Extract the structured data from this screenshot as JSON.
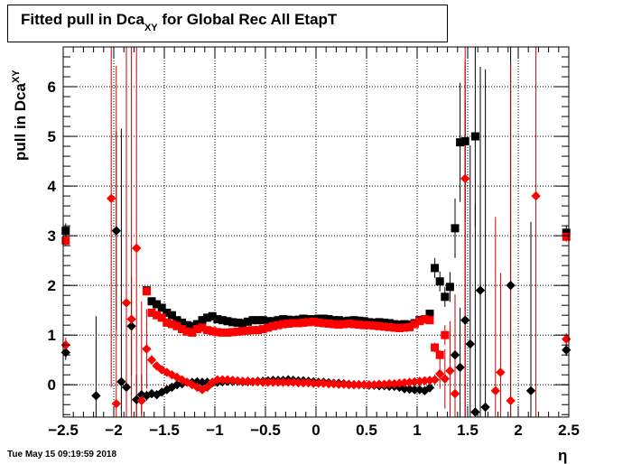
{
  "title": {
    "main": "Fitted pull in Dca",
    "sub": "XY",
    "rest": " for Global Rec All EtapT"
  },
  "timestamp": "Tue May 15 09:19:59 2018",
  "colors": {
    "black_series": "#000000",
    "red_series": "#ff0000",
    "red_errorbar": "#cc0000"
  },
  "chart_data": {
    "type": "scatter",
    "title": "Fitted pull in Dca_XY for Global Rec All EtapT",
    "xlabel": "η",
    "ylabel": "pull in Dca_XY",
    "xlim": [
      -2.5,
      2.5
    ],
    "ylim": [
      -0.65,
      6.8
    ],
    "xticks": [
      -2.5,
      -2,
      -1.5,
      -1,
      -0.5,
      0,
      0.5,
      1,
      1.5,
      2,
      2.5
    ],
    "xtick_labels": [
      "−2.5",
      "−2",
      "−1.5",
      "−1",
      "−0.5",
      "0",
      "0.5",
      "1",
      "1.5",
      "2",
      "2.5"
    ],
    "yticks": [
      0,
      1,
      2,
      3,
      4,
      5,
      6
    ],
    "ytick_labels": [
      "0",
      "1",
      "2",
      "3",
      "4",
      "5",
      "6"
    ],
    "grid": true,
    "series": [
      {
        "marker": "square",
        "color": "black",
        "x": [
          -2.475,
          -1.675,
          -1.625,
          -1.575,
          -1.525,
          -1.475,
          -1.425,
          -1.375,
          -1.325,
          -1.275,
          -1.225,
          -1.175,
          -1.125,
          -1.075,
          -1.025,
          -0.975,
          -0.925,
          -0.875,
          -0.825,
          -0.775,
          -0.725,
          -0.675,
          -0.625,
          -0.575,
          -0.525,
          -0.475,
          -0.425,
          -0.375,
          -0.325,
          -0.275,
          -0.225,
          -0.175,
          -0.125,
          -0.075,
          -0.025,
          0.025,
          0.075,
          0.125,
          0.175,
          0.225,
          0.275,
          0.325,
          0.375,
          0.425,
          0.475,
          0.525,
          0.575,
          0.625,
          0.675,
          0.725,
          0.775,
          0.825,
          0.875,
          0.925,
          0.975,
          1.025,
          1.075,
          1.125,
          1.175,
          1.225,
          1.275,
          1.325,
          1.375,
          1.425,
          1.475,
          1.575,
          2.475
        ],
        "y": [
          3.1,
          1.9,
          1.68,
          1.62,
          1.55,
          1.45,
          1.4,
          1.3,
          1.25,
          1.2,
          1.18,
          1.22,
          1.3,
          1.35,
          1.38,
          1.32,
          1.3,
          1.28,
          1.26,
          1.25,
          1.24,
          1.27,
          1.3,
          1.3,
          1.3,
          1.28,
          1.28,
          1.3,
          1.32,
          1.31,
          1.3,
          1.31,
          1.33,
          1.32,
          1.32,
          1.33,
          1.33,
          1.32,
          1.3,
          1.3,
          1.28,
          1.29,
          1.3,
          1.29,
          1.28,
          1.26,
          1.25,
          1.26,
          1.25,
          1.24,
          1.22,
          1.21,
          1.22,
          1.21,
          1.24,
          1.3,
          1.32,
          1.43,
          2.35,
          2.08,
          1.77,
          1.97,
          3.15,
          4.88,
          4.9,
          5.0,
          3.06
        ],
        "yerr": [
          0.15,
          0.05,
          0.05,
          0.05,
          0.05,
          0.05,
          0.05,
          0.05,
          0.05,
          0.05,
          0.05,
          0.05,
          0.05,
          0.05,
          0.05,
          0.05,
          0.05,
          0.05,
          0.05,
          0.05,
          0.05,
          0.05,
          0.05,
          0.05,
          0.05,
          0.05,
          0.05,
          0.05,
          0.05,
          0.05,
          0.05,
          0.05,
          0.05,
          0.05,
          0.05,
          0.05,
          0.05,
          0.05,
          0.05,
          0.05,
          0.05,
          0.05,
          0.05,
          0.05,
          0.05,
          0.05,
          0.05,
          0.05,
          0.05,
          0.05,
          0.05,
          0.05,
          0.05,
          0.05,
          0.05,
          0.05,
          0.05,
          0.05,
          0.2,
          0.2,
          0.2,
          0.3,
          0.6,
          1.2,
          1.6,
          1.8,
          0.15
        ]
      },
      {
        "marker": "square",
        "color": "red",
        "x": [
          -2.475,
          -1.675,
          -1.625,
          -1.575,
          -1.525,
          -1.475,
          -1.425,
          -1.375,
          -1.325,
          -1.275,
          -1.225,
          -1.175,
          -1.125,
          -1.075,
          -1.025,
          -0.975,
          -0.925,
          -0.875,
          -0.825,
          -0.775,
          -0.725,
          -0.675,
          -0.625,
          -0.575,
          -0.525,
          -0.475,
          -0.425,
          -0.375,
          -0.325,
          -0.275,
          -0.225,
          -0.175,
          -0.125,
          -0.075,
          -0.025,
          0.025,
          0.075,
          0.125,
          0.175,
          0.225,
          0.275,
          0.325,
          0.375,
          0.425,
          0.475,
          0.525,
          0.575,
          0.625,
          0.675,
          0.725,
          0.775,
          0.825,
          0.875,
          0.925,
          0.975,
          1.025,
          1.075,
          1.125,
          1.175,
          1.225,
          1.275,
          2.475
        ],
        "y": [
          2.9,
          1.88,
          1.45,
          1.4,
          1.35,
          1.25,
          1.22,
          1.18,
          1.12,
          1.07,
          1.05,
          1.12,
          1.15,
          1.1,
          1.08,
          1.06,
          1.05,
          1.05,
          1.06,
          1.07,
          1.08,
          1.09,
          1.1,
          1.1,
          1.12,
          1.15,
          1.18,
          1.2,
          1.22,
          1.23,
          1.24,
          1.24,
          1.25,
          1.26,
          1.27,
          1.25,
          1.24,
          1.23,
          1.22,
          1.21,
          1.22,
          1.23,
          1.22,
          1.21,
          1.2,
          1.2,
          1.19,
          1.18,
          1.17,
          1.16,
          1.15,
          1.14,
          1.15,
          1.16,
          1.22,
          1.28,
          1.32,
          1.3,
          0.75,
          0.6,
          1.0,
          2.98
        ],
        "yerr": [
          0.1,
          0.05,
          0.05,
          0.05,
          0.05,
          0.05,
          0.05,
          0.05,
          0.05,
          0.05,
          0.05,
          0.05,
          0.05,
          0.05,
          0.05,
          0.05,
          0.05,
          0.05,
          0.05,
          0.05,
          0.05,
          0.05,
          0.05,
          0.05,
          0.05,
          0.05,
          0.05,
          0.05,
          0.05,
          0.05,
          0.05,
          0.05,
          0.05,
          0.05,
          0.05,
          0.05,
          0.05,
          0.05,
          0.05,
          0.05,
          0.05,
          0.05,
          0.05,
          0.05,
          0.05,
          0.05,
          0.05,
          0.05,
          0.05,
          0.05,
          0.05,
          0.05,
          0.05,
          0.05,
          0.05,
          0.05,
          0.05,
          0.05,
          0.1,
          0.1,
          0.2,
          0.1
        ]
      },
      {
        "marker": "diamond",
        "color": "black",
        "x": [
          -2.475,
          -2.175,
          -1.975,
          -1.925,
          -1.875,
          -1.825,
          -1.775,
          -1.725,
          -1.675,
          -1.625,
          -1.575,
          -1.525,
          -1.475,
          -1.425,
          -1.375,
          -1.325,
          -1.275,
          -1.225,
          -1.175,
          -1.125,
          -1.075,
          -1.025,
          -0.975,
          -0.925,
          -0.875,
          -0.825,
          -0.775,
          -0.725,
          -0.675,
          -0.625,
          -0.575,
          -0.525,
          -0.475,
          -0.425,
          -0.375,
          -0.325,
          -0.275,
          -0.225,
          -0.175,
          -0.125,
          -0.075,
          -0.025,
          0.025,
          0.075,
          0.125,
          0.175,
          0.225,
          0.275,
          0.325,
          0.375,
          0.425,
          0.475,
          0.525,
          0.575,
          0.625,
          0.675,
          0.725,
          0.775,
          0.825,
          0.875,
          0.925,
          0.975,
          1.025,
          1.075,
          1.125,
          1.375,
          1.425,
          1.475,
          1.525,
          1.575,
          1.625,
          1.675,
          1.925,
          2.125,
          2.475
        ],
        "y": [
          0.65,
          -0.22,
          3.1,
          0.06,
          -0.05,
          1.18,
          -0.3,
          -0.2,
          -0.22,
          -0.18,
          -0.2,
          -0.15,
          -0.1,
          -0.05,
          0.0,
          0.02,
          0.05,
          0.05,
          0.06,
          0.05,
          0.05,
          0.04,
          0.05,
          0.06,
          0.07,
          0.07,
          0.07,
          0.06,
          0.06,
          0.06,
          0.07,
          0.07,
          0.08,
          0.09,
          0.09,
          0.09,
          0.1,
          0.09,
          0.08,
          0.08,
          0.07,
          0.06,
          0.05,
          0.05,
          0.04,
          0.03,
          0.03,
          0.02,
          0.01,
          0.0,
          0.0,
          0.0,
          -0.01,
          -0.01,
          -0.02,
          -0.02,
          -0.03,
          -0.03,
          -0.05,
          -0.08,
          -0.09,
          -0.1,
          -0.1,
          -0.12,
          -0.06,
          0.6,
          0.35,
          1.3,
          0.82,
          -0.55,
          1.9,
          -0.45,
          2.0,
          -0.12,
          0.7
        ],
        "yerr": [
          0.15,
          1.6,
          2.0,
          5.1,
          3.0,
          1.0,
          0.5,
          0.4,
          0.1,
          0.05,
          0.05,
          0.05,
          0.05,
          0.05,
          0.05,
          0.05,
          0.05,
          0.05,
          0.05,
          0.05,
          0.05,
          0.05,
          0.05,
          0.05,
          0.05,
          0.05,
          0.05,
          0.05,
          0.05,
          0.05,
          0.05,
          0.05,
          0.05,
          0.05,
          0.05,
          0.05,
          0.05,
          0.05,
          0.05,
          0.05,
          0.05,
          0.05,
          0.05,
          0.05,
          0.05,
          0.05,
          0.05,
          0.05,
          0.05,
          0.05,
          0.05,
          0.05,
          0.05,
          0.05,
          0.05,
          0.05,
          0.05,
          0.05,
          0.05,
          0.05,
          0.05,
          0.05,
          0.05,
          0.05,
          0.05,
          1.0,
          1.2,
          4.4,
          4.0,
          4.2,
          4.5,
          6.8,
          6.8,
          3.4,
          0.12
        ]
      },
      {
        "marker": "diamond",
        "color": "red",
        "x": [
          -2.475,
          -2.025,
          -1.975,
          -1.875,
          -1.825,
          -1.775,
          -1.725,
          -1.675,
          -1.625,
          -1.575,
          -1.525,
          -1.475,
          -1.425,
          -1.375,
          -1.325,
          -1.275,
          -1.225,
          -1.175,
          -1.125,
          -1.075,
          -1.025,
          -0.975,
          -0.925,
          -0.875,
          -0.825,
          -0.775,
          -0.725,
          -0.675,
          -0.625,
          -0.575,
          -0.525,
          -0.475,
          -0.425,
          -0.375,
          -0.325,
          -0.275,
          -0.225,
          -0.175,
          -0.125,
          -0.075,
          -0.025,
          0.025,
          0.075,
          0.125,
          0.175,
          0.225,
          0.275,
          0.325,
          0.375,
          0.425,
          0.475,
          0.525,
          0.575,
          0.625,
          0.675,
          0.725,
          0.775,
          0.825,
          0.875,
          0.925,
          0.975,
          1.025,
          1.075,
          1.125,
          1.175,
          1.225,
          1.275,
          1.325,
          1.375,
          1.475,
          1.775,
          1.825,
          1.925,
          2.175,
          2.475
        ],
        "y": [
          0.8,
          3.75,
          -0.38,
          1.65,
          1.32,
          2.75,
          -0.32,
          0.72,
          0.5,
          0.38,
          0.3,
          0.25,
          0.2,
          0.15,
          0.1,
          0.05,
          0.0,
          -0.05,
          -0.1,
          -0.05,
          0.05,
          0.1,
          0.1,
          0.1,
          0.09,
          0.08,
          0.07,
          0.07,
          0.06,
          0.06,
          0.05,
          0.05,
          0.05,
          0.05,
          0.05,
          0.05,
          0.05,
          0.04,
          0.04,
          0.04,
          0.03,
          0.03,
          0.03,
          0.02,
          0.02,
          0.01,
          0.01,
          0.0,
          0.0,
          0.0,
          0.0,
          0.0,
          0.0,
          0.01,
          0.01,
          0.02,
          0.02,
          0.03,
          0.04,
          0.05,
          0.06,
          0.07,
          0.08,
          0.09,
          0.1,
          0.22,
          0.12,
          0.28,
          -0.18,
          4.15,
          -0.12,
          0.25,
          -0.32,
          3.8,
          0.92
        ],
        "yerr": [
          0.15,
          3.8,
          6.8,
          6.8,
          5.7,
          4.5,
          2.0,
          0.8,
          0.1,
          0.05,
          0.05,
          0.05,
          0.05,
          0.05,
          0.05,
          0.05,
          0.05,
          0.05,
          0.05,
          0.05,
          0.05,
          0.05,
          0.05,
          0.05,
          0.05,
          0.05,
          0.05,
          0.05,
          0.05,
          0.05,
          0.05,
          0.05,
          0.05,
          0.05,
          0.05,
          0.05,
          0.05,
          0.05,
          0.05,
          0.05,
          0.05,
          0.05,
          0.05,
          0.05,
          0.05,
          0.05,
          0.05,
          0.05,
          0.05,
          0.05,
          0.05,
          0.05,
          0.05,
          0.05,
          0.05,
          0.05,
          0.05,
          0.05,
          0.05,
          0.05,
          0.05,
          0.05,
          0.05,
          0.05,
          0.1,
          0.3,
          0.6,
          1.0,
          2.0,
          6.8,
          3.5,
          2.0,
          6.8,
          6.8,
          0.12
        ]
      }
    ]
  }
}
